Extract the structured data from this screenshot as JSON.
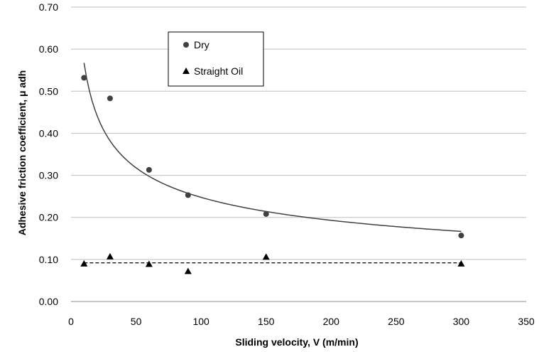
{
  "chart_data": {
    "type": "scatter",
    "xlabel": "Sliding velocity, V (m/min)",
    "ylabel": "Adhesive friction coefficient, μ adh",
    "xlim": [
      0,
      350
    ],
    "ylim": [
      0,
      0.7
    ],
    "xticks": [
      0,
      50,
      100,
      150,
      200,
      250,
      300,
      350
    ],
    "xtick_labels": [
      "0",
      "50",
      "100",
      "150",
      "200",
      "250",
      "300",
      "350"
    ],
    "yticks": [
      0,
      0.1,
      0.2,
      0.3,
      0.4,
      0.5,
      0.6,
      0.7
    ],
    "ytick_labels": [
      "0.00",
      "0.10",
      "0.20",
      "0.30",
      "0.40",
      "0.50",
      "0.60",
      "0.70"
    ],
    "grid": "horizontal",
    "legend_position": "top-left",
    "series": [
      {
        "name": "Dry",
        "marker": "circle",
        "color": "#404040",
        "x": [
          10,
          30,
          60,
          90,
          150,
          300
        ],
        "y": [
          0.532,
          0.483,
          0.313,
          0.253,
          0.208,
          0.157
        ],
        "trendline": {
          "kind": "power",
          "a": 1.3,
          "b": -0.36,
          "x_range": [
            10,
            300
          ],
          "style": "solid"
        }
      },
      {
        "name": "Straight Oil",
        "marker": "triangle",
        "color": "#000000",
        "x": [
          10,
          30,
          60,
          90,
          150,
          300
        ],
        "y": [
          0.09,
          0.107,
          0.089,
          0.072,
          0.106,
          0.09
        ],
        "trendline": {
          "kind": "constant",
          "value": 0.092,
          "x_range": [
            10,
            300
          ],
          "style": "dashed"
        }
      }
    ]
  }
}
